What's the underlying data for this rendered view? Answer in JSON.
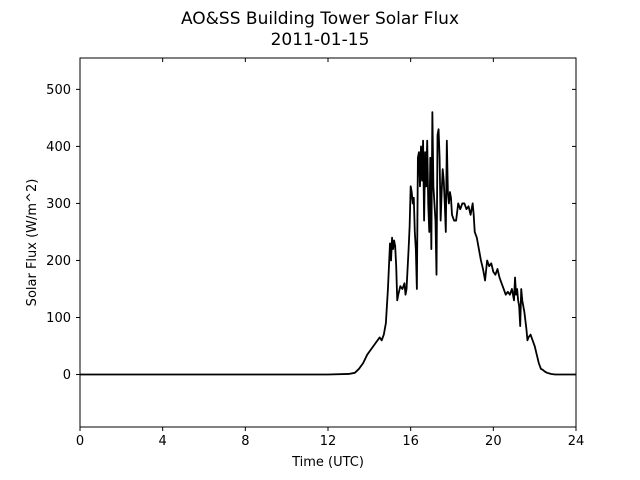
{
  "chart_data": {
    "type": "line",
    "title": "AO&SS Building Tower Solar Flux",
    "subtitle": "2011-01-15",
    "xlabel": "Time (UTC)",
    "ylabel": "Solar Flux (W/m^2)",
    "xlim": [
      0,
      24
    ],
    "ylim": [
      -92,
      555
    ],
    "xticks": [
      0,
      4,
      8,
      12,
      16,
      20,
      24
    ],
    "yticks": [
      0,
      100,
      200,
      300,
      400,
      500
    ],
    "grid": false,
    "line_color": "#000000",
    "series": [
      {
        "x": [
          0,
          2,
          4,
          6,
          8,
          10,
          12,
          13.0,
          13.3,
          13.5,
          13.7,
          13.9,
          14.1,
          14.3,
          14.5,
          14.6,
          14.7,
          14.8,
          14.9,
          15.0,
          15.05,
          15.1,
          15.15,
          15.2,
          15.25,
          15.3,
          15.35,
          15.4,
          15.5,
          15.6,
          15.7,
          15.75,
          15.8,
          15.9,
          15.95,
          16.0,
          16.05,
          16.1,
          16.15,
          16.2,
          16.25,
          16.3,
          16.35,
          16.4,
          16.45,
          16.5,
          16.55,
          16.6,
          16.65,
          16.7,
          16.75,
          16.8,
          16.85,
          16.9,
          16.95,
          17.0,
          17.05,
          17.1,
          17.15,
          17.2,
          17.25,
          17.3,
          17.35,
          17.4,
          17.45,
          17.5,
          17.55,
          17.6,
          17.65,
          17.7,
          17.75,
          17.8,
          17.85,
          17.9,
          17.95,
          18.0,
          18.1,
          18.2,
          18.3,
          18.4,
          18.5,
          18.6,
          18.7,
          18.8,
          18.9,
          19.0,
          19.05,
          19.1,
          19.2,
          19.3,
          19.4,
          19.5,
          19.55,
          19.6,
          19.7,
          19.8,
          19.9,
          20.0,
          20.1,
          20.2,
          20.3,
          20.4,
          20.5,
          20.6,
          20.7,
          20.8,
          20.9,
          21.0,
          21.05,
          21.1,
          21.15,
          21.2,
          21.25,
          21.3,
          21.35,
          21.4,
          21.5,
          21.6,
          21.65,
          21.7,
          21.8,
          21.9,
          22.0,
          22.1,
          22.2,
          22.3,
          22.4,
          22.5,
          22.6,
          22.7,
          22.8,
          23.0,
          23.3,
          23.6,
          24
        ],
        "y": [
          0,
          0,
          0,
          0,
          0,
          0,
          0,
          1,
          3,
          10,
          20,
          35,
          45,
          55,
          65,
          60,
          70,
          90,
          150,
          230,
          200,
          240,
          220,
          235,
          225,
          190,
          130,
          140,
          155,
          150,
          160,
          140,
          150,
          220,
          260,
          330,
          320,
          300,
          310,
          250,
          220,
          150,
          380,
          390,
          330,
          400,
          340,
          410,
          270,
          390,
          330,
          410,
          300,
          250,
          380,
          220,
          460,
          330,
          300,
          270,
          175,
          420,
          430,
          380,
          270,
          320,
          360,
          340,
          300,
          250,
          410,
          320,
          300,
          320,
          310,
          280,
          270,
          270,
          300,
          290,
          300,
          300,
          290,
          295,
          280,
          300,
          280,
          250,
          240,
          220,
          200,
          185,
          175,
          165,
          200,
          190,
          195,
          180,
          175,
          185,
          170,
          160,
          150,
          140,
          145,
          140,
          150,
          130,
          170,
          140,
          150,
          130,
          120,
          85,
          150,
          130,
          110,
          80,
          60,
          65,
          70,
          60,
          50,
          35,
          20,
          10,
          8,
          5,
          3,
          2,
          1,
          0,
          0,
          0,
          0
        ]
      }
    ]
  }
}
